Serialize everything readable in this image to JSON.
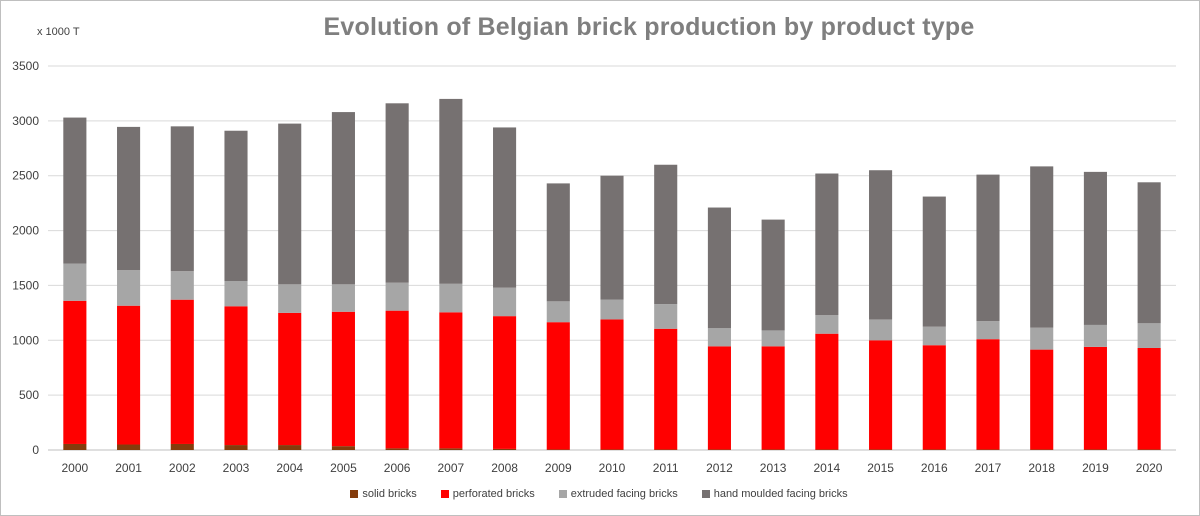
{
  "chart_data": {
    "type": "bar",
    "stacked": true,
    "title": "Evolution of Belgian brick production by product type",
    "unit_label": "x 1000 T",
    "xlabel": "",
    "ylabel": "",
    "ylim": [
      0,
      3500
    ],
    "yticks": [
      0,
      500,
      1000,
      1500,
      2000,
      2500,
      3000,
      3500
    ],
    "grid": true,
    "legend_position": "bottom",
    "categories": [
      "2000",
      "2001",
      "2002",
      "2003",
      "2004",
      "2005",
      "2006",
      "2007",
      "2008",
      "2009",
      "2010",
      "2011",
      "2012",
      "2013",
      "2014",
      "2015",
      "2016",
      "2017",
      "2018",
      "2019",
      "2020"
    ],
    "series": [
      {
        "name": "solid bricks",
        "color": "#843c0c",
        "values": [
          55,
          50,
          55,
          45,
          45,
          35,
          15,
          15,
          10,
          5,
          5,
          5,
          5,
          5,
          5,
          5,
          5,
          5,
          5,
          5,
          5
        ]
      },
      {
        "name": "perforated bricks",
        "color": "#ff0000",
        "values": [
          1305,
          1265,
          1315,
          1265,
          1205,
          1225,
          1255,
          1240,
          1210,
          1160,
          1185,
          1100,
          940,
          940,
          1055,
          995,
          950,
          1005,
          910,
          935,
          925
        ]
      },
      {
        "name": "extruded facing bricks",
        "color": "#a6a6a6",
        "values": [
          340,
          325,
          260,
          230,
          260,
          250,
          255,
          260,
          260,
          190,
          180,
          225,
          165,
          145,
          170,
          190,
          170,
          165,
          200,
          200,
          225
        ]
      },
      {
        "name": "hand moulded facing bricks",
        "color": "#767171",
        "values": [
          1330,
          1305,
          1320,
          1370,
          1465,
          1570,
          1635,
          1685,
          1460,
          1075,
          1130,
          1270,
          1100,
          1010,
          1290,
          1360,
          1185,
          1335,
          1470,
          1395,
          1285
        ]
      }
    ]
  }
}
